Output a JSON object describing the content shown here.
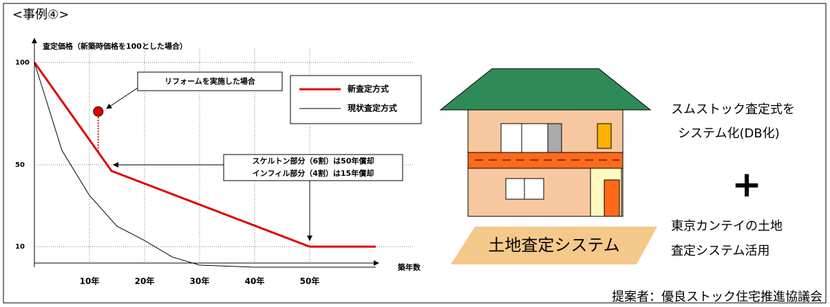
{
  "page": {
    "header": "<事例④>",
    "right_lines": [
      "スムストック査定式を",
      "システム化(DB化)"
    ],
    "plus": "+",
    "right_lines2": [
      "東京カンテイの土地",
      "査定システム活用"
    ],
    "land_label": "土地査定システム",
    "footer": "提案者：優良ストック住宅推進協議会"
  },
  "chart_data": {
    "type": "line",
    "y_label": "査定価格（新築時価格を100とした場合）",
    "x_label": "築年数",
    "xlim": [
      0,
      62
    ],
    "ylim": [
      0,
      110
    ],
    "xticks": [
      {
        "value": 10,
        "label": "10年"
      },
      {
        "value": 20,
        "label": "20年"
      },
      {
        "value": 30,
        "label": "30年"
      },
      {
        "value": 40,
        "label": "40年"
      },
      {
        "value": 50,
        "label": "50年"
      }
    ],
    "yticks": [
      10,
      50,
      100
    ],
    "grid": true,
    "series": [
      {
        "name": "新査定方式",
        "color": "#e00000",
        "x": [
          0,
          14,
          50,
          62
        ],
        "values": [
          100,
          47,
          10,
          10
        ]
      },
      {
        "name": "現状査定方式",
        "color": "#000000",
        "x": [
          0,
          5,
          10,
          15,
          20,
          25,
          30,
          40,
          62
        ],
        "values": [
          100,
          57,
          35,
          20,
          13,
          5,
          1,
          0,
          0
        ]
      }
    ],
    "reform_point": {
      "x": 11.6,
      "y": 76,
      "base": 56
    },
    "annotations": [
      "リフォームを実施した場合",
      "スケルトン部分（6割）は50年償却",
      "インフィル部分（4割）は15年償却"
    ]
  }
}
